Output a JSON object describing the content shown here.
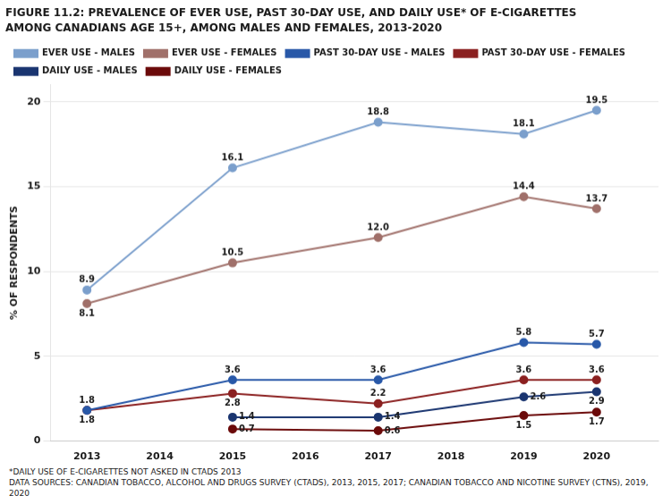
{
  "chart_data": {
    "type": "line",
    "title": "FIGURE 11.2: PREVALENCE OF EVER USE, PAST 30-DAY USE, AND DAILY USE* OF E-CIGARETTES",
    "subtitle": "AMONG CANADIANS AGE 15+, AMONG MALES AND FEMALES, 2013-2020",
    "ylabel": "% OF RESPONDENTS",
    "x": [
      2013,
      2015,
      2017,
      2019,
      2020
    ],
    "series": [
      {
        "name": "EVER USE - MALES",
        "color": "#7B9FCC",
        "values": [
          8.9,
          16.1,
          18.8,
          18.1,
          19.5
        ]
      },
      {
        "name": "EVER USE - FEMALES",
        "color": "#A0706A",
        "values": [
          8.1,
          10.5,
          12.0,
          14.4,
          13.7
        ],
        "value_labels": [
          "8.1",
          "10.5",
          "12.0",
          "14.4",
          "13.7"
        ]
      },
      {
        "name": "PAST 30-DAY USE - MALES",
        "color": "#2858A8",
        "values": [
          1.8,
          3.6,
          3.6,
          5.8,
          5.7
        ]
      },
      {
        "name": "PAST 30-DAY USE - FEMALES",
        "color": "#8B2020",
        "values": [
          1.8,
          2.8,
          2.2,
          3.6,
          3.6
        ]
      },
      {
        "name": "DAILY USE - MALES",
        "color": "#1A3570",
        "values": [
          null,
          1.4,
          1.4,
          2.6,
          2.9
        ]
      },
      {
        "name": "DAILY USE - FEMALES",
        "color": "#6B0A0A",
        "values": [
          null,
          0.7,
          0.6,
          1.5,
          1.7
        ]
      }
    ],
    "xlim": [
      2012.5,
      2020.85
    ],
    "xticks": [
      2013,
      2014,
      2015,
      2016,
      2017,
      2018,
      2019,
      2020
    ],
    "ylim": [
      0,
      21
    ],
    "yticks": [
      0,
      5,
      10,
      15,
      20
    ],
    "grid": "y",
    "legend": "top",
    "marker": "circle",
    "data_labels": true,
    "annotations": [
      "*DAILY USE OF E-CIGARETTES NOT ASKED IN CTADS 2013",
      "DATA SOURCES: CANADIAN TOBACCO, ALCOHOL AND DRUGS SURVEY (CTADS), 2013, 2015, 2017; CANADIAN TOBACCO AND NICOTINE SURVEY (CTNS), 2019,",
      "2020"
    ]
  }
}
